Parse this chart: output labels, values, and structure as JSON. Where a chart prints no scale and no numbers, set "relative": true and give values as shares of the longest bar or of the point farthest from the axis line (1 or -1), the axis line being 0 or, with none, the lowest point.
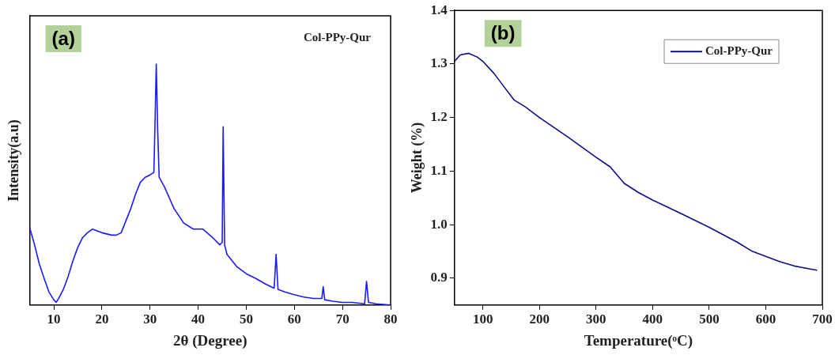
{
  "chart_data": [
    {
      "type": "line",
      "title": "(a)",
      "xlabel": "2θ (Degree)",
      "ylabel": "Intensity(a.u)",
      "relative": true,
      "xlim": [
        5,
        80
      ],
      "xticks": [
        10,
        20,
        30,
        40,
        50,
        60,
        70,
        80
      ],
      "marker": "none",
      "line_style": "solid",
      "annotations": [
        "Col-PPy-Qur"
      ],
      "series": [
        {
          "color": "#1a1aff",
          "x": [
            5,
            6,
            7,
            8,
            9,
            10,
            10.5,
            11,
            12,
            13,
            14,
            15,
            16,
            17,
            18,
            20,
            22,
            23,
            24,
            25,
            26,
            27,
            28,
            29,
            30,
            30.8,
            31.0,
            31.3,
            31.6,
            31.9,
            33,
            35,
            37,
            39,
            41,
            43,
            44.5,
            45.0,
            45.2,
            45.5,
            46,
            48,
            50,
            52,
            54,
            55.8,
            56.2,
            56.6,
            58,
            60,
            62,
            64,
            65.7,
            66.0,
            66.3,
            68,
            70,
            72,
            74.6,
            75.0,
            75.4,
            77,
            80
          ],
          "values": [
            0.32,
            0.25,
            0.17,
            0.11,
            0.054,
            0.022,
            0.011,
            0.027,
            0.065,
            0.12,
            0.185,
            0.24,
            0.28,
            0.3,
            0.315,
            0.3,
            0.29,
            0.29,
            0.3,
            0.35,
            0.4,
            0.46,
            0.51,
            0.53,
            0.54,
            0.55,
            0.72,
            1.0,
            0.72,
            0.53,
            0.49,
            0.4,
            0.34,
            0.315,
            0.315,
            0.28,
            0.25,
            0.26,
            0.74,
            0.25,
            0.21,
            0.16,
            0.13,
            0.11,
            0.087,
            0.07,
            0.21,
            0.065,
            0.054,
            0.043,
            0.033,
            0.027,
            0.027,
            0.076,
            0.022,
            0.016,
            0.011,
            0.011,
            0.005,
            0.098,
            0.011,
            0.005,
            0
          ]
        }
      ]
    },
    {
      "type": "line",
      "title": "(b)",
      "xlabel": "Temperature(ᵒC)",
      "ylabel": "Weight (%)",
      "xlim": [
        50,
        700
      ],
      "xticks": [
        100,
        200,
        300,
        400,
        500,
        600,
        700
      ],
      "ylim": [
        0.85,
        1.4
      ],
      "yticks": [
        {
          "value": 0.9,
          "label": "0.9"
        },
        {
          "value": 1.0,
          "label": "1.0"
        },
        {
          "value": 1.1,
          "label": "1.1"
        },
        {
          "value": 1.2,
          "label": "1.2"
        },
        {
          "value": 1.3,
          "label": "1.3"
        },
        {
          "value": 1.4,
          "label": "1.4"
        }
      ],
      "marker": "none",
      "line_style": "solid",
      "legend": "top right",
      "series": [
        {
          "name": "Col-PPy-Qur",
          "color": "#0d0d8a",
          "x": [
            50,
            60,
            75,
            90,
            100,
            120,
            140,
            155,
            175,
            200,
            250,
            300,
            325,
            350,
            375,
            400,
            450,
            500,
            550,
            575,
            600,
            625,
            650,
            675,
            690
          ],
          "values": [
            1.305,
            1.317,
            1.32,
            1.313,
            1.305,
            1.282,
            1.254,
            1.233,
            1.22,
            1.2,
            1.164,
            1.126,
            1.108,
            1.077,
            1.06,
            1.046,
            1.021,
            0.995,
            0.967,
            0.951,
            0.941,
            0.931,
            0.923,
            0.918,
            0.915
          ]
        }
      ]
    }
  ]
}
